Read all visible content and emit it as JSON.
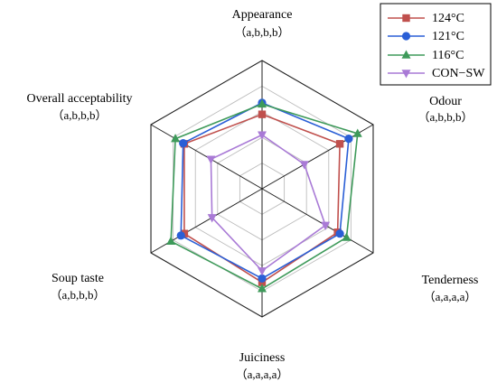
{
  "chart_data": {
    "type": "radar",
    "title": "",
    "axes": [
      {
        "label": "Appearance",
        "significance": "（a,b,b,b）"
      },
      {
        "label": "Odour",
        "significance": "（a,b,b,b）"
      },
      {
        "label": "Tenderness",
        "significance": "（a,a,a,a）"
      },
      {
        "label": "Juiciness",
        "significance": "（a,a,a,a）"
      },
      {
        "label": "Soup taste",
        "significance": "（a,b,b,b）"
      },
      {
        "label": "Overall acceptability",
        "significance": "（a,b,b,b）"
      }
    ],
    "range": [
      0,
      10
    ],
    "grid_levels": 5,
    "grid": true,
    "legend_position": "top-right",
    "series": [
      {
        "name": "124°C",
        "color": "#c0504d",
        "marker": "square",
        "values": [
          5.8,
          7.0,
          6.8,
          7.3,
          7.0,
          7.0
        ]
      },
      {
        "name": "121°C",
        "color": "#2a5fd6",
        "marker": "circle",
        "values": [
          6.7,
          7.8,
          7.0,
          7.0,
          7.3,
          7.1
        ]
      },
      {
        "name": "116°C",
        "color": "#3e9a5a",
        "marker": "triangle-up",
        "values": [
          6.6,
          8.6,
          7.6,
          7.8,
          8.2,
          7.8
        ]
      },
      {
        "name": "CON−SW",
        "color": "#a97ad6",
        "marker": "triangle-down",
        "values": [
          4.2,
          3.8,
          5.7,
          6.4,
          4.5,
          4.6
        ]
      }
    ]
  }
}
